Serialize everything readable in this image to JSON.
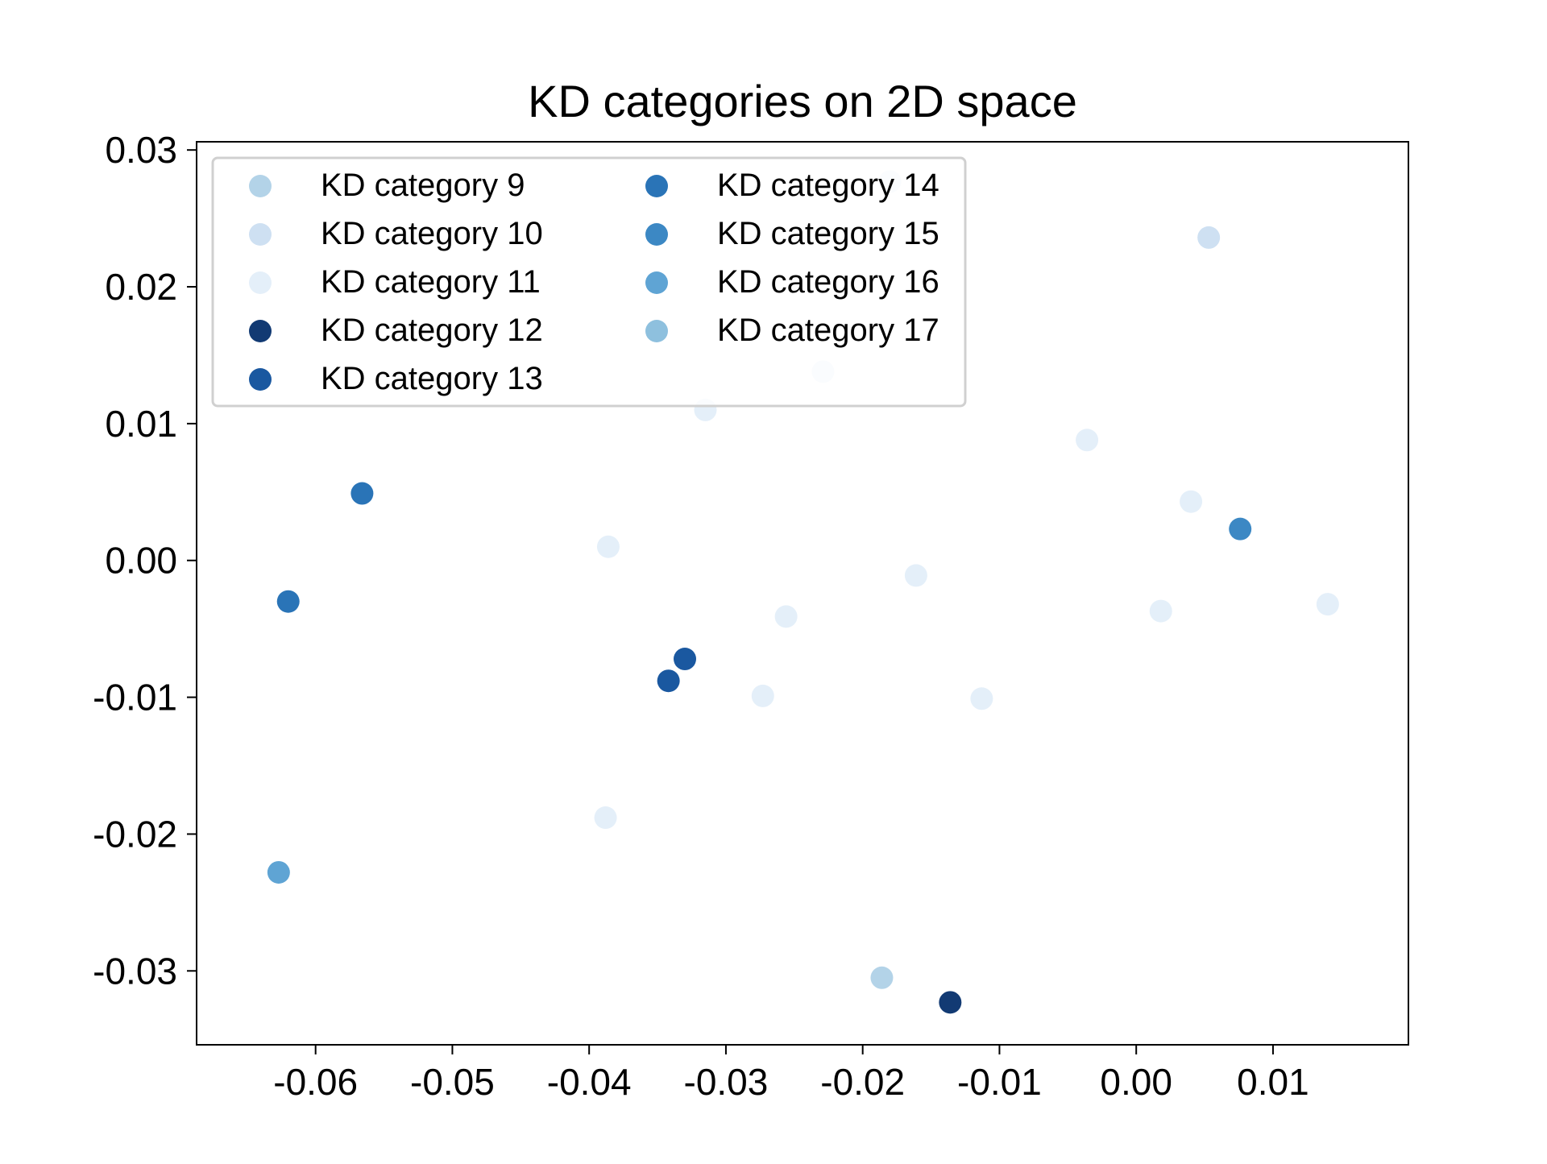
{
  "chart_data": {
    "type": "scatter",
    "title": "KD categories on 2D space",
    "xlabel": "",
    "ylabel": "",
    "xlim": [
      -0.0687,
      0.0199
    ],
    "ylim": [
      -0.0354,
      0.0306
    ],
    "xticks": [
      -0.06,
      -0.05,
      -0.04,
      -0.03,
      -0.02,
      -0.01,
      0.0,
      0.01
    ],
    "xtick_labels": [
      "-0.06",
      "-0.05",
      "-0.04",
      "-0.03",
      "-0.02",
      "-0.01",
      "0.00",
      "0.01"
    ],
    "yticks": [
      0.03,
      0.02,
      0.01,
      0.0,
      -0.01,
      -0.02,
      -0.03
    ],
    "ytick_labels": [
      "0.03",
      "0.02",
      "0.01",
      "0.00",
      "-0.01",
      "-0.02",
      "-0.03"
    ],
    "grid": false,
    "legend_position": "top-left",
    "legend_columns": 2,
    "series": [
      {
        "name": "KD category 9",
        "color": "#b3d3e8",
        "points": [
          [
            -0.0186,
            -0.0305
          ]
        ]
      },
      {
        "name": "KD category 10",
        "color": "#cee0f2",
        "points": [
          [
            0.0053,
            0.0236
          ]
        ]
      },
      {
        "name": "KD category 11",
        "color": "#e4eff9",
        "points": [
          [
            -0.018,
            0.0277
          ],
          [
            -0.0229,
            0.0138
          ],
          [
            -0.0315,
            0.011
          ],
          [
            -0.0036,
            0.0088
          ],
          [
            0.004,
            0.0043
          ],
          [
            -0.0386,
            0.001
          ],
          [
            -0.0161,
            -0.0011
          ],
          [
            -0.0256,
            -0.0041
          ],
          [
            0.0018,
            -0.0037
          ],
          [
            0.014,
            -0.0032
          ],
          [
            -0.0273,
            -0.0099
          ],
          [
            -0.0113,
            -0.0101
          ],
          [
            -0.0388,
            -0.0188
          ]
        ]
      },
      {
        "name": "KD category 12",
        "color": "#123a73",
        "points": [
          [
            -0.0136,
            -0.0323
          ]
        ]
      },
      {
        "name": "KD category 13",
        "color": "#1a58a0",
        "points": [
          [
            -0.033,
            -0.0072
          ],
          [
            -0.0342,
            -0.0088
          ]
        ]
      },
      {
        "name": "KD category 14",
        "color": "#2a74b7",
        "points": [
          [
            -0.0566,
            0.0049
          ],
          [
            -0.062,
            -0.003
          ]
        ]
      },
      {
        "name": "KD category 15",
        "color": "#3c88c4",
        "points": [
          [
            0.0076,
            0.0023
          ]
        ]
      },
      {
        "name": "KD category 16",
        "color": "#5fa4d4",
        "points": [
          [
            -0.0627,
            -0.0228
          ]
        ]
      },
      {
        "name": "KD category 17",
        "color": "#8ec0de",
        "points": []
      }
    ]
  }
}
